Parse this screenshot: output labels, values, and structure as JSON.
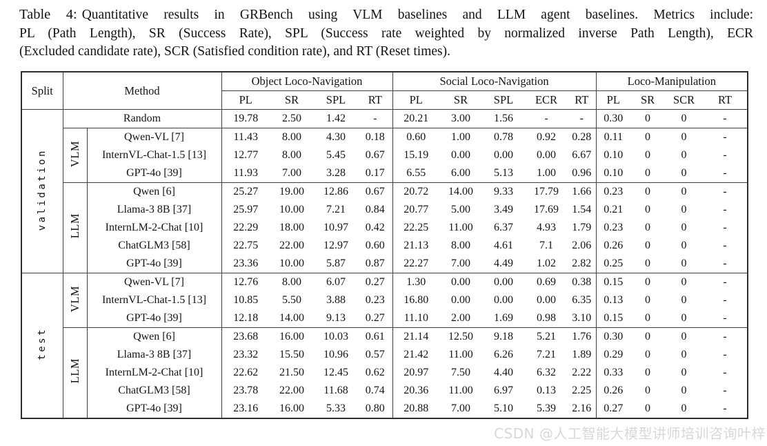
{
  "caption": {
    "label": "Table 4:",
    "line1": "Quantitative results in GRBench using VLM baselines and LLM agent baselines. Metrics include:",
    "line2": "PL (Path Length), SR (Success Rate), SPL (Success rate weighted by normalized inverse Path Length), ECR",
    "line3": "(Excluded candidate rate), SCR (Satisfied condition rate), and RT (Reset times)."
  },
  "table": {
    "columns": {
      "split": "Split",
      "method": "Method",
      "groups": [
        {
          "label": "Object Loco-Navigation",
          "metrics": [
            "PL",
            "SR",
            "SPL",
            "RT"
          ]
        },
        {
          "label": "Social Loco-Navigation",
          "metrics": [
            "PL",
            "SR",
            "SPL",
            "ECR",
            "RT"
          ]
        },
        {
          "label": "Loco-Manipulation",
          "metrics": [
            "PL",
            "SR",
            "SCR",
            "RT"
          ]
        }
      ]
    },
    "sections": [
      {
        "split": "validation",
        "groups": [
          {
            "type": null,
            "rows": [
              {
                "method": "Random",
                "values": [
                  "19.78",
                  "2.50",
                  "1.42",
                  "-",
                  "20.21",
                  "3.00",
                  "1.56",
                  "-",
                  "-",
                  "0.30",
                  "0",
                  "0",
                  "-"
                ]
              }
            ]
          },
          {
            "type": "VLM",
            "rows": [
              {
                "method": "Qwen-VL [7]",
                "values": [
                  "11.43",
                  "8.00",
                  "4.30",
                  "0.18",
                  "0.60",
                  "1.00",
                  "0.78",
                  "0.92",
                  "0.28",
                  "0.11",
                  "0",
                  "0",
                  "-"
                ]
              },
              {
                "method": "InternVL-Chat-1.5 [13]",
                "values": [
                  "12.77",
                  "8.00",
                  "5.45",
                  "0.67",
                  "15.19",
                  "0.00",
                  "0.00",
                  "0.00",
                  "6.67",
                  "0.10",
                  "0",
                  "0",
                  "-"
                ]
              },
              {
                "method": "GPT-4o [39]",
                "values": [
                  "11.93",
                  "7.00",
                  "3.28",
                  "0.17",
                  "6.55",
                  "6.00",
                  "5.13",
                  "1.00",
                  "0.96",
                  "0.10",
                  "0",
                  "0",
                  "-"
                ]
              }
            ]
          },
          {
            "type": "LLM",
            "rows": [
              {
                "method": "Qwen [6]",
                "values": [
                  "25.27",
                  "19.00",
                  "12.86",
                  "0.67",
                  "20.72",
                  "14.00",
                  "9.33",
                  "17.79",
                  "1.66",
                  "0.23",
                  "0",
                  "0",
                  "-"
                ]
              },
              {
                "method": "Llama-3 8B [37]",
                "values": [
                  "25.97",
                  "10.00",
                  "7.21",
                  "0.84",
                  "20.77",
                  "5.00",
                  "3.49",
                  "17.69",
                  "1.54",
                  "0.21",
                  "0",
                  "0",
                  "-"
                ]
              },
              {
                "method": "InternLM-2-Chat [10]",
                "values": [
                  "22.29",
                  "18.00",
                  "10.97",
                  "0.42",
                  "22.25",
                  "11.00",
                  "6.37",
                  "4.93",
                  "1.79",
                  "0.23",
                  "0",
                  "0",
                  "-"
                ]
              },
              {
                "method": "ChatGLM3 [58]",
                "values": [
                  "22.75",
                  "22.00",
                  "12.97",
                  "0.60",
                  "21.13",
                  "8.00",
                  "4.61",
                  "7.1",
                  "2.06",
                  "0.26",
                  "0",
                  "0",
                  "-"
                ]
              },
              {
                "method": "GPT-4o [39]",
                "values": [
                  "23.36",
                  "10.00",
                  "5.87",
                  "0.87",
                  "22.27",
                  "7.00",
                  "4.49",
                  "1.02",
                  "2.82",
                  "0.25",
                  "0",
                  "0",
                  "-"
                ]
              }
            ]
          }
        ]
      },
      {
        "split": "test",
        "groups": [
          {
            "type": "VLM",
            "rows": [
              {
                "method": "Qwen-VL [7]",
                "values": [
                  "12.76",
                  "8.00",
                  "6.07",
                  "0.27",
                  "1.30",
                  "0.00",
                  "0.00",
                  "0.69",
                  "0.38",
                  "0.15",
                  "0",
                  "0",
                  "-"
                ]
              },
              {
                "method": "InternVL-Chat-1.5 [13]",
                "values": [
                  "10.85",
                  "5.50",
                  "3.88",
                  "0.23",
                  "16.80",
                  "0.00",
                  "0.00",
                  "0.00",
                  "6.35",
                  "0.13",
                  "0",
                  "0",
                  "-"
                ]
              },
              {
                "method": "GPT-4o [39]",
                "values": [
                  "12.18",
                  "14.00",
                  "9.13",
                  "0.27",
                  "11.10",
                  "2.00",
                  "1.69",
                  "0.98",
                  "3.10",
                  "0.15",
                  "0",
                  "0",
                  "-"
                ]
              }
            ]
          },
          {
            "type": "LLM",
            "rows": [
              {
                "method": "Qwen [6]",
                "values": [
                  "23.68",
                  "16.00",
                  "10.03",
                  "0.61",
                  "21.14",
                  "12.50",
                  "9.18",
                  "5.21",
                  "1.76",
                  "0.30",
                  "0",
                  "0",
                  "-"
                ]
              },
              {
                "method": "Llama-3 8B [37]",
                "values": [
                  "23.32",
                  "15.50",
                  "10.96",
                  "0.57",
                  "21.42",
                  "11.00",
                  "6.26",
                  "7.21",
                  "1.89",
                  "0.29",
                  "0",
                  "0",
                  "-"
                ]
              },
              {
                "method": "InternLM-2-Chat [10]",
                "values": [
                  "22.62",
                  "21.50",
                  "12.45",
                  "0.62",
                  "20.97",
                  "7.50",
                  "4.40",
                  "6.32",
                  "2.22",
                  "0.33",
                  "0",
                  "0",
                  "-"
                ]
              },
              {
                "method": "ChatGLM3 [58]",
                "values": [
                  "23.78",
                  "22.00",
                  "11.68",
                  "0.74",
                  "20.36",
                  "11.00",
                  "6.97",
                  "0.13",
                  "2.25",
                  "0.26",
                  "0",
                  "0",
                  "-"
                ]
              },
              {
                "method": "GPT-4o [39]",
                "values": [
                  "23.16",
                  "16.00",
                  "5.33",
                  "0.80",
                  "20.88",
                  "7.00",
                  "5.10",
                  "5.39",
                  "2.16",
                  "0.27",
                  "0",
                  "0",
                  "-"
                ]
              }
            ]
          }
        ]
      }
    ]
  },
  "watermark": "CSDN @人工智能大模型讲师培训咨询叶梓"
}
